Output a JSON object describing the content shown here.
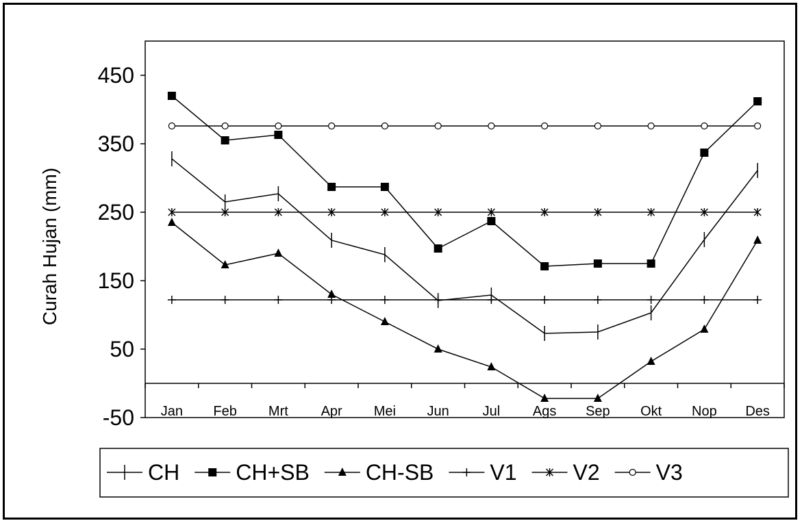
{
  "chart_data": {
    "type": "line",
    "title": "",
    "xlabel": "",
    "ylabel": "Curah Hujan (mm)",
    "categories": [
      "Jan",
      "Feb",
      "Mrt",
      "Apr",
      "Mei",
      "Jun",
      "Jul",
      "Ags",
      "Sep",
      "Okt",
      "Nop",
      "Des"
    ],
    "yticks": [
      450,
      350,
      250,
      150,
      50,
      -50
    ],
    "ylim": [
      -50,
      500
    ],
    "grid": false,
    "legend": "bottom",
    "series": [
      {
        "name": "CH",
        "marker": "vbar",
        "values": [
          328,
          265,
          277,
          209,
          188,
          121,
          129,
          73,
          75,
          103,
          210,
          311
        ]
      },
      {
        "name": "CH+SB",
        "marker": "square",
        "values": [
          420,
          355,
          363,
          287,
          287,
          197,
          237,
          171,
          175,
          175,
          337,
          412
        ]
      },
      {
        "name": "CH-SB",
        "marker": "triangle",
        "values": [
          235,
          173,
          190,
          130,
          90,
          50,
          24,
          -22,
          -22,
          32,
          79,
          209
        ]
      },
      {
        "name": "V1",
        "marker": "plus",
        "values": [
          122,
          122,
          122,
          122,
          122,
          122,
          122,
          122,
          122,
          122,
          122,
          122
        ]
      },
      {
        "name": "V2",
        "marker": "asterisk",
        "values": [
          250,
          250,
          250,
          250,
          250,
          250,
          250,
          250,
          250,
          250,
          250,
          250
        ]
      },
      {
        "name": "V3",
        "marker": "circle",
        "values": [
          376,
          376,
          376,
          376,
          376,
          376,
          376,
          376,
          376,
          376,
          376,
          376
        ]
      }
    ]
  }
}
